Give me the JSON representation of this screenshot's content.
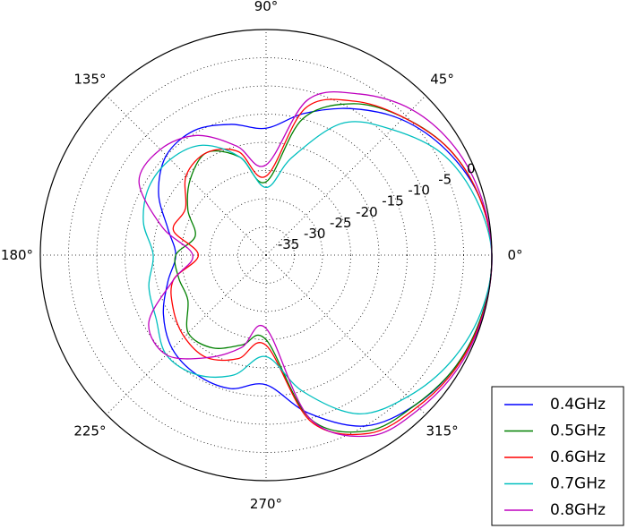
{
  "chart_data": {
    "type": "polar-line",
    "title": "",
    "theta_unit": "degrees",
    "angle_ticks": [
      "0°",
      "45°",
      "90°",
      "135°",
      "180°",
      "225°",
      "270°",
      "315°"
    ],
    "angle_tick_values": [
      0,
      45,
      90,
      135,
      180,
      225,
      270,
      315
    ],
    "r_ticks": [
      "0",
      "-5",
      "-10",
      "-15",
      "-20",
      "-25",
      "-30",
      "-35"
    ],
    "r_tick_values": [
      0,
      -5,
      -10,
      -15,
      -20,
      -25,
      -30,
      -35
    ],
    "rlim": [
      -40,
      0
    ],
    "grid": true,
    "legend_position": "bottom-right",
    "theta": [
      0,
      15,
      30,
      45,
      60,
      75,
      90,
      105,
      120,
      135,
      150,
      165,
      180,
      195,
      210,
      225,
      240,
      255,
      270,
      285,
      300,
      315,
      330,
      345
    ],
    "series": [
      {
        "name": "0.4GHz",
        "color": "#0000ff",
        "values": [
          0,
          -0.8,
          -3,
          -6,
          -10,
          -14,
          -17.5,
          -16,
          -14.5,
          -15,
          -18,
          -22,
          -24,
          -22,
          -19,
          -16.5,
          -15.5,
          -15.5,
          -17,
          -11,
          -5,
          -2.5,
          -1,
          -0.3
        ]
      },
      {
        "name": "0.5GHz",
        "color": "#008000",
        "values": [
          0,
          -0.8,
          -2.5,
          -5.5,
          -9,
          -15,
          -27,
          -22,
          -19,
          -21,
          -24,
          -27,
          -24,
          -24,
          -24,
          -20.5,
          -21,
          -23.5,
          -25,
          -10,
          -4,
          -2.5,
          -1,
          -0.3
        ]
      },
      {
        "name": "0.6GHz",
        "color": "#ff0000",
        "values": [
          0,
          -0.8,
          -2.5,
          -5.5,
          -8.5,
          -13,
          -26,
          -21,
          -19,
          -20,
          -23.5,
          -23,
          -28,
          -23,
          -21,
          -19.5,
          -19,
          -21,
          -24,
          -9.5,
          -3.5,
          -2,
          -0.8,
          -0.2
        ]
      },
      {
        "name": "0.7GHz",
        "color": "#00bfbf",
        "values": [
          0,
          -1.5,
          -4,
          -8.5,
          -13,
          -22,
          -28,
          -22,
          -17.5,
          -16,
          -16,
          -17.5,
          -20,
          -18.5,
          -17.5,
          -15,
          -15.5,
          -18,
          -22,
          -15,
          -7.5,
          -4.5,
          -2.2,
          -0.6
        ]
      },
      {
        "name": "0.8GHz",
        "color": "#bf00bf",
        "values": [
          0,
          -0.5,
          -1.5,
          -3.5,
          -7,
          -11.5,
          -24,
          -20,
          -15.5,
          -13.5,
          -14,
          -21,
          -27,
          -23,
          -16,
          -15,
          -19,
          -23,
          -27,
          -10,
          -3,
          -1.5,
          -0.5,
          -0.1
        ]
      }
    ]
  }
}
